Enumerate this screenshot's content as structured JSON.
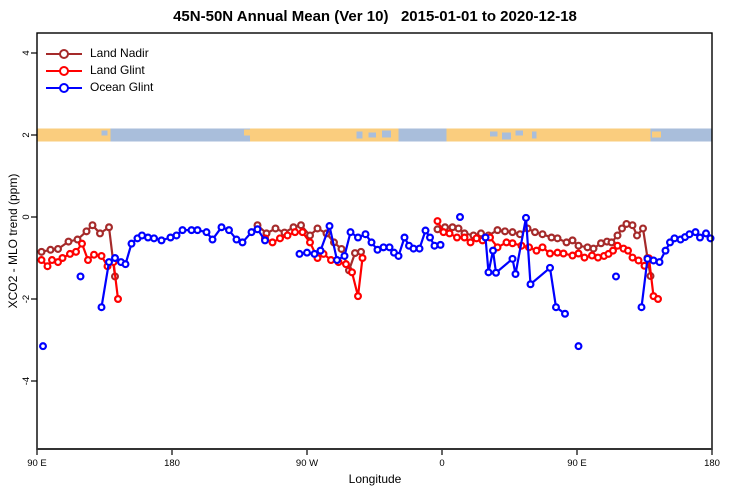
{
  "title": "45N-50N Annual Mean (Ver 10)   2015-01-01 to 2020-12-18",
  "legend": {
    "items": [
      {
        "label": "Land Nadir",
        "color": "#A52A2A"
      },
      {
        "label": "Land Glint",
        "color": "#FF0000"
      },
      {
        "label": "Ocean Glint",
        "color": "#0000FF"
      }
    ]
  },
  "chart_data": {
    "type": "line",
    "title": "45N-50N Annual Mean (Ver 10)   2015-01-01 to 2020-12-18",
    "xlabel": "Longitude",
    "ylabel": "XCO2 - MLO trend (ppm)",
    "xlim": [
      90,
      540
    ],
    "ylim": [
      -5.5,
      4.5
    ],
    "grid": false,
    "legend_position": "top-left",
    "x_ticks": [
      {
        "value": 90,
        "label": "90 E"
      },
      {
        "value": 180,
        "label": "180"
      },
      {
        "value": 270,
        "label": "90 W"
      },
      {
        "value": 360,
        "label": "0"
      },
      {
        "value": 450,
        "label": "90 E"
      },
      {
        "value": 540,
        "label": "180"
      }
    ],
    "y_ticks": [
      {
        "value": 4,
        "label": "4"
      },
      {
        "value": 2,
        "label": "2"
      },
      {
        "value": 0,
        "label": "0"
      },
      {
        "value": -2,
        "label": "-2"
      },
      {
        "value": -4,
        "label": "-4"
      }
    ],
    "map_strip": {
      "y_value": 2,
      "land_color": "#FACD7E",
      "ocean_color": "#A9BEDB",
      "ocean_spans": [
        [
          139,
          232
        ],
        [
          331,
          363
        ],
        [
          499,
          540
        ]
      ],
      "ocean_speckles": [
        [
          133,
          137
        ],
        [
          303,
          307
        ],
        [
          311,
          316
        ],
        [
          320,
          326
        ],
        [
          392,
          397
        ],
        [
          400,
          406
        ],
        [
          409,
          414
        ],
        [
          420,
          423
        ]
      ],
      "land_speckles": [
        [
          228,
          233
        ],
        [
          500,
          506
        ]
      ]
    },
    "series": [
      {
        "name": "Land Nadir",
        "color": "#A52A2A",
        "segments": [
          [
            [
              93,
              -0.85
            ],
            [
              99,
              -0.8
            ],
            [
              104,
              -0.78
            ],
            [
              111,
              -0.6
            ],
            [
              117,
              -0.55
            ],
            [
              123,
              -0.35
            ],
            [
              127,
              -0.2
            ],
            [
              132,
              -0.4
            ],
            [
              138,
              -0.25
            ],
            [
              142,
              -1.45
            ]
          ],
          [
            [
              237,
              -0.2
            ],
            [
              243,
              -0.4
            ],
            [
              249,
              -0.28
            ],
            [
              255,
              -0.38
            ],
            [
              261,
              -0.25
            ],
            [
              266,
              -0.2
            ],
            [
              272,
              -0.45
            ],
            [
              277,
              -0.28
            ],
            [
              283,
              -0.4
            ],
            [
              288,
              -0.62
            ],
            [
              293,
              -0.78
            ],
            [
              298,
              -1.3
            ],
            [
              302,
              -0.88
            ],
            [
              306,
              -0.85
            ]
          ],
          [
            [
              357,
              -0.3
            ],
            [
              362,
              -0.25
            ],
            [
              367,
              -0.25
            ],
            [
              371,
              -0.28
            ],
            [
              375,
              -0.4
            ],
            [
              381,
              -0.45
            ],
            [
              386,
              -0.4
            ],
            [
              391,
              -0.45
            ],
            [
              397,
              -0.32
            ],
            [
              402,
              -0.35
            ],
            [
              407,
              -0.37
            ],
            [
              412,
              -0.42
            ],
            [
              417,
              -0.28
            ],
            [
              422,
              -0.37
            ],
            [
              427,
              -0.42
            ],
            [
              433,
              -0.5
            ],
            [
              437,
              -0.52
            ],
            [
              443,
              -0.62
            ],
            [
              447,
              -0.57
            ],
            [
              451,
              -0.7
            ],
            [
              457,
              -0.74
            ],
            [
              461,
              -0.77
            ],
            [
              466,
              -0.64
            ],
            [
              470,
              -0.6
            ],
            [
              473,
              -0.62
            ],
            [
              477,
              -0.45
            ],
            [
              480,
              -0.28
            ],
            [
              483,
              -0.17
            ],
            [
              487,
              -0.2
            ],
            [
              490,
              -0.45
            ],
            [
              494,
              -0.28
            ],
            [
              497,
              -1.0
            ],
            [
              499,
              -1.44
            ]
          ]
        ]
      },
      {
        "name": "Land Glint",
        "color": "#FF0000",
        "segments": [
          [
            [
              93,
              -1.05
            ],
            [
              97,
              -1.2
            ],
            [
              100,
              -1.05
            ],
            [
              104,
              -1.1
            ],
            [
              107,
              -1.0
            ],
            [
              112,
              -0.9
            ],
            [
              116,
              -0.85
            ],
            [
              120,
              -0.65
            ],
            [
              124,
              -1.05
            ],
            [
              128,
              -0.92
            ],
            [
              133,
              -0.95
            ],
            [
              137,
              -1.2
            ],
            [
              141,
              -1.1
            ],
            [
              144,
              -2.0
            ]
          ],
          [
            [
              242,
              -0.52
            ],
            [
              247,
              -0.62
            ],
            [
              252,
              -0.52
            ],
            [
              257,
              -0.45
            ],
            [
              262,
              -0.37
            ],
            [
              267,
              -0.37
            ],
            [
              272,
              -0.62
            ],
            [
              277,
              -1.0
            ],
            [
              281,
              -0.9
            ],
            [
              286,
              -1.05
            ],
            [
              291,
              -1.1
            ],
            [
              296,
              -1.15
            ],
            [
              300,
              -1.35
            ],
            [
              304,
              -1.93
            ],
            [
              307,
              -1.0
            ]
          ],
          [
            [
              357,
              -0.1
            ],
            [
              361,
              -0.37
            ],
            [
              365,
              -0.4
            ],
            [
              370,
              -0.5
            ],
            [
              375,
              -0.5
            ],
            [
              379,
              -0.62
            ],
            [
              383,
              -0.52
            ],
            [
              387,
              -0.57
            ],
            [
              392,
              -0.5
            ],
            [
              397,
              -0.74
            ],
            [
              403,
              -0.62
            ],
            [
              407,
              -0.64
            ],
            [
              413,
              -0.7
            ],
            [
              418,
              -0.74
            ],
            [
              423,
              -0.82
            ],
            [
              427,
              -0.74
            ],
            [
              432,
              -0.89
            ],
            [
              437,
              -0.87
            ],
            [
              441,
              -0.89
            ],
            [
              447,
              -0.94
            ],
            [
              451,
              -0.89
            ],
            [
              455,
              -0.99
            ],
            [
              460,
              -0.94
            ],
            [
              464,
              -0.99
            ],
            [
              468,
              -0.95
            ],
            [
              471,
              -0.9
            ],
            [
              474,
              -0.82
            ],
            [
              477,
              -0.7
            ],
            [
              481,
              -0.77
            ],
            [
              484,
              -0.82
            ],
            [
              487,
              -0.99
            ],
            [
              491,
              -1.06
            ],
            [
              495,
              -1.19
            ],
            [
              498,
              -1.01
            ],
            [
              501,
              -1.93
            ],
            [
              504,
              -2.0
            ]
          ]
        ]
      },
      {
        "name": "Ocean Glint",
        "color": "#0000FF",
        "segments": [
          [
            [
              94,
              -3.15
            ]
          ],
          [
            [
              119,
              -1.45
            ]
          ],
          [
            [
              133,
              -2.2
            ],
            [
              138,
              -1.1
            ],
            [
              142,
              -1.0
            ],
            [
              146,
              -1.1
            ],
            [
              149,
              -1.15
            ],
            [
              153,
              -0.65
            ],
            [
              157,
              -0.52
            ],
            [
              160,
              -0.45
            ],
            [
              164,
              -0.5
            ],
            [
              168,
              -0.52
            ],
            [
              173,
              -0.57
            ],
            [
              179,
              -0.5
            ],
            [
              183,
              -0.45
            ],
            [
              187,
              -0.32
            ],
            [
              193,
              -0.32
            ],
            [
              197,
              -0.32
            ],
            [
              203,
              -0.37
            ],
            [
              207,
              -0.55
            ],
            [
              213,
              -0.25
            ],
            [
              218,
              -0.32
            ],
            [
              223,
              -0.55
            ],
            [
              227,
              -0.62
            ],
            [
              233,
              -0.37
            ],
            [
              237,
              -0.3
            ],
            [
              242,
              -0.57
            ]
          ],
          [
            [
              265,
              -0.9
            ],
            [
              270,
              -0.87
            ],
            [
              275,
              -0.9
            ],
            [
              279,
              -0.82
            ],
            [
              285,
              -0.22
            ],
            [
              290,
              -1.05
            ],
            [
              295,
              -0.95
            ],
            [
              299,
              -0.37
            ],
            [
              304,
              -0.5
            ],
            [
              309,
              -0.42
            ],
            [
              313,
              -0.62
            ],
            [
              317,
              -0.8
            ],
            [
              321,
              -0.74
            ],
            [
              325,
              -0.74
            ],
            [
              328,
              -0.87
            ],
            [
              331,
              -0.95
            ],
            [
              335,
              -0.5
            ],
            [
              338,
              -0.7
            ],
            [
              341,
              -0.77
            ],
            [
              345,
              -0.77
            ],
            [
              349,
              -0.33
            ],
            [
              352,
              -0.5
            ],
            [
              355,
              -0.7
            ],
            [
              359,
              -0.68
            ]
          ],
          [
            [
              372,
              0.0
            ]
          ],
          [
            [
              389,
              -0.5
            ],
            [
              391,
              -1.35
            ],
            [
              394,
              -0.82
            ],
            [
              396,
              -1.36
            ],
            [
              407,
              -1.02
            ],
            [
              409,
              -1.39
            ],
            [
              416,
              -0.02
            ],
            [
              419,
              -1.64
            ],
            [
              432,
              -1.24
            ],
            [
              436,
              -2.2
            ],
            [
              442,
              -2.36
            ]
          ],
          [
            [
              451,
              -3.15
            ]
          ],
          [
            [
              476,
              -1.45
            ]
          ],
          [
            [
              493,
              -2.2
            ],
            [
              497,
              -1.02
            ],
            [
              501,
              -1.06
            ],
            [
              505,
              -1.1
            ],
            [
              509,
              -0.82
            ],
            [
              512,
              -0.62
            ],
            [
              515,
              -0.52
            ],
            [
              519,
              -0.55
            ],
            [
              522,
              -0.49
            ],
            [
              525,
              -0.42
            ],
            [
              529,
              -0.37
            ],
            [
              532,
              -0.5
            ],
            [
              536,
              -0.4
            ],
            [
              539,
              -0.52
            ]
          ]
        ]
      }
    ]
  }
}
